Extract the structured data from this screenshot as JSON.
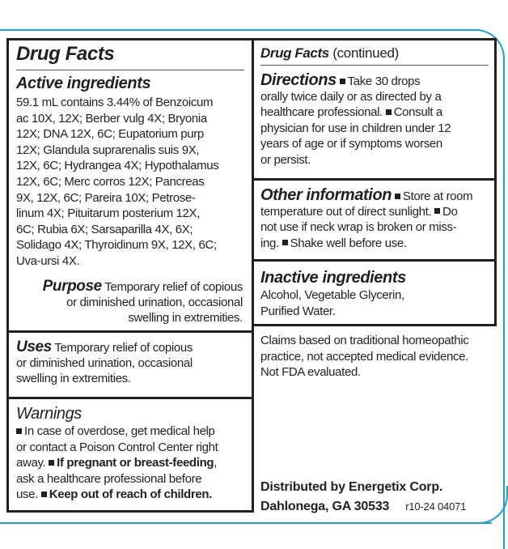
{
  "colors": {
    "accent_border": "#1a9fd6",
    "text": "#231f20"
  },
  "left": {
    "title": "Drug Facts",
    "active": {
      "heading": "Active ingredients",
      "lines": [
        "59.1 mL contains 3.44% of Benzoicum",
        "ac 10X, 12X; Berber vulg 4X; Bryonia",
        "12X; DNA 12X, 6C; Eupatorium purp",
        "12X; Glandula suprarenalis suis 9X,",
        "12X, 6C; Hydrangea 4X; Hypothalamus",
        "12X, 6C; Merc corros 12X; Pancreas",
        "9X, 12X, 6C; Pareira 10X; Petrose-",
        "linum 4X; Pituitarum posterium 12X,",
        "6C; Rubia 6X; Sarsaparilla 4X, 6X;",
        "Solidago 4X; Thyroidinum 9X, 12X, 6C;",
        "Uva-ursi 4X."
      ]
    },
    "purpose": {
      "heading": "Purpose",
      "line1": "Temporary relief of copious",
      "line2": "or diminished urination, occasional",
      "line3": "swelling in extremities."
    },
    "uses": {
      "heading": "Uses",
      "line1": "Temporary relief of copious",
      "line2": "or diminished urination, occasional",
      "line3": "swelling in extremities."
    },
    "warnings": {
      "heading": "Warnings",
      "l1": "In case of overdose, get medical help",
      "l2": "or contact a Poison Control Center right",
      "l3a": "away.",
      "l3b": "If pregnant or breast-feeding",
      ",": ",",
      "l4": "ask a healthcare professional before",
      "l5a": "use.",
      "l5b": "Keep out of reach of children."
    }
  },
  "right": {
    "title": "Drug Facts",
    "title_suffix": "(continued)",
    "directions": {
      "heading": "Directions",
      "l1": "Take 30 drops",
      "l2": "orally twice daily or as directed by a",
      "l3a": "healthcare professional.",
      "l3b": "Consult a",
      "l4": "physician for use in children under 12",
      "l5": "years of age or if symptoms worsen",
      "l6": "or persist."
    },
    "other": {
      "heading": "Other information",
      "l1": "Store at room",
      "l2a": "temperature out of direct sunlight.",
      "l2b": "Do",
      "l3": "not use if neck wrap is broken or miss-",
      "l4a": "ing.",
      "l4b": "Shake well before use."
    },
    "inactive": {
      "heading": "Inactive ingredients",
      "l1": "Alcohol, Vegetable Glycerin,",
      "l2": "Purified Water."
    },
    "claims": [
      "Claims based on traditional homeopathic",
      "practice, not accepted medical evidence.",
      "Not FDA evaluated."
    ],
    "distributor": {
      "l1": "Distributed by Energetix Corp.",
      "l2": "Dahlonega, GA 30533",
      "code": "r10-24 04071"
    }
  }
}
